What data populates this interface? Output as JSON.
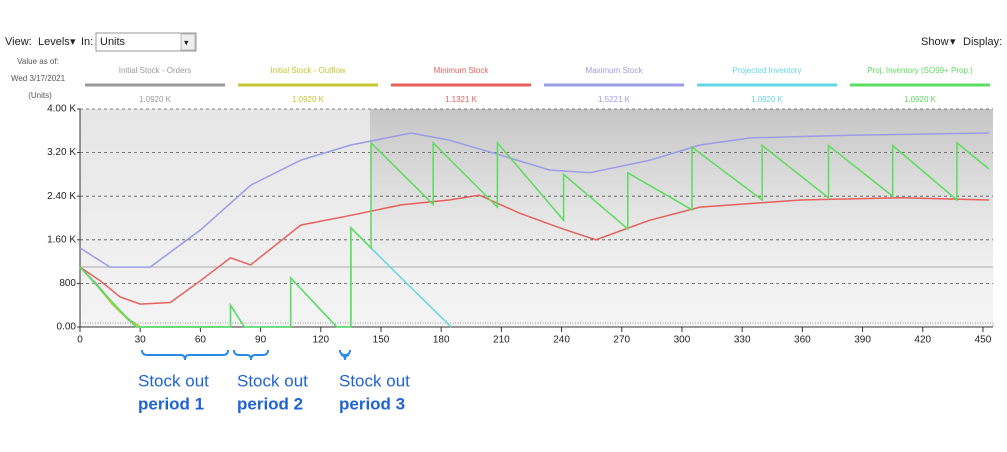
{
  "toolbar": {
    "view": "View:",
    "levels": "Levels",
    "in": "In:",
    "units": "Units",
    "show": "Show",
    "display": "Display:"
  },
  "side": {
    "value_as_of": "Value as of:",
    "date": "Wed 3/17/2021",
    "units": "(Units)"
  },
  "chart_data": {
    "type": "line",
    "xlim": [
      0,
      455
    ],
    "xticks": [
      0,
      30,
      60,
      90,
      120,
      150,
      180,
      210,
      240,
      270,
      300,
      330,
      360,
      390,
      420,
      450
    ],
    "ylim": [
      0,
      4000
    ],
    "yticks": [
      {
        "value": 0,
        "label": "0.00"
      },
      800,
      {
        "value": 1600,
        "label": "1.60 K"
      },
      {
        "value": 2400,
        "label": "2.40 K"
      },
      {
        "value": 3200,
        "label": "3.20 K"
      },
      {
        "value": 4000,
        "label": "4.00 K"
      }
    ],
    "grid": true,
    "series": [
      {
        "name": "Initial Stock - Orders",
        "current_label": "1.0920 K",
        "color": "#9a9a9a",
        "x": [
          0,
          8,
          16,
          24,
          30
        ],
        "values": [
          1100,
          800,
          450,
          150,
          0
        ]
      },
      {
        "name": "Initial Stock - Outflow",
        "current_label": "1.0920 K",
        "color": "#c4c435",
        "x": [
          0,
          8,
          16,
          24,
          30,
          72
        ],
        "values": [
          1100,
          780,
          420,
          130,
          0,
          0
        ]
      },
      {
        "name": "Minimum Stock",
        "current_label": "1.1321 K",
        "color": "#e8605c",
        "x": [
          0,
          10,
          20,
          30,
          45,
          60,
          75,
          85,
          110,
          135,
          160,
          184,
          199,
          219,
          239,
          257,
          284,
          309,
          359,
          409,
          453
        ],
        "values": [
          1100,
          850,
          550,
          420,
          450,
          850,
          1270,
          1140,
          1870,
          2050,
          2240,
          2330,
          2420,
          2090,
          1820,
          1600,
          1960,
          2200,
          2330,
          2370,
          2330
        ]
      },
      {
        "name": "Maximum Stock",
        "current_label": "1.5221 K",
        "color": "#9c9ce8",
        "x": [
          0,
          15,
          35,
          60,
          85,
          110,
          135,
          165,
          184,
          209,
          234,
          254,
          284,
          309,
          334,
          384,
          453
        ],
        "values": [
          1450,
          1100,
          1100,
          1780,
          2600,
          3060,
          3340,
          3560,
          3430,
          3160,
          2880,
          2830,
          3060,
          3340,
          3470,
          3520,
          3560
        ]
      },
      {
        "name": "Projected Inventory",
        "current_label": "1.0920 K",
        "color": "#62d6e6",
        "x": [
          0,
          10,
          20,
          28,
          75,
          75,
          82,
          105,
          105,
          128,
          135,
          135,
          160,
          185
        ],
        "values": [
          1100,
          700,
          300,
          0,
          0,
          400,
          0,
          0,
          900,
          0,
          0,
          1820,
          900,
          0
        ]
      },
      {
        "name": "Proj. Inventory (SO99+ Prop.)",
        "current_label": "1.0920 K",
        "color": "#5cdc5c",
        "x": [
          0,
          10,
          20,
          28,
          75,
          75,
          82,
          105,
          105,
          128,
          135,
          135,
          145,
          145,
          176,
          176,
          208,
          208,
          241,
          241,
          273,
          273,
          305,
          305,
          340,
          340,
          373,
          373,
          405,
          405,
          437,
          437,
          453
        ],
        "values": [
          1100,
          700,
          300,
          0,
          0,
          400,
          0,
          0,
          900,
          0,
          0,
          1820,
          1450,
          3380,
          2250,
          3380,
          2200,
          3380,
          1960,
          2800,
          1800,
          2830,
          2150,
          3300,
          2330,
          3330,
          2370,
          3330,
          2400,
          3330,
          2330,
          3380,
          2900
        ]
      }
    ]
  },
  "annotations": [
    {
      "lines": [
        "Stock out",
        "period 1"
      ]
    },
    {
      "lines": [
        "Stock out",
        "period 2"
      ]
    },
    {
      "lines": [
        "Stock out",
        "period 3"
      ]
    }
  ]
}
